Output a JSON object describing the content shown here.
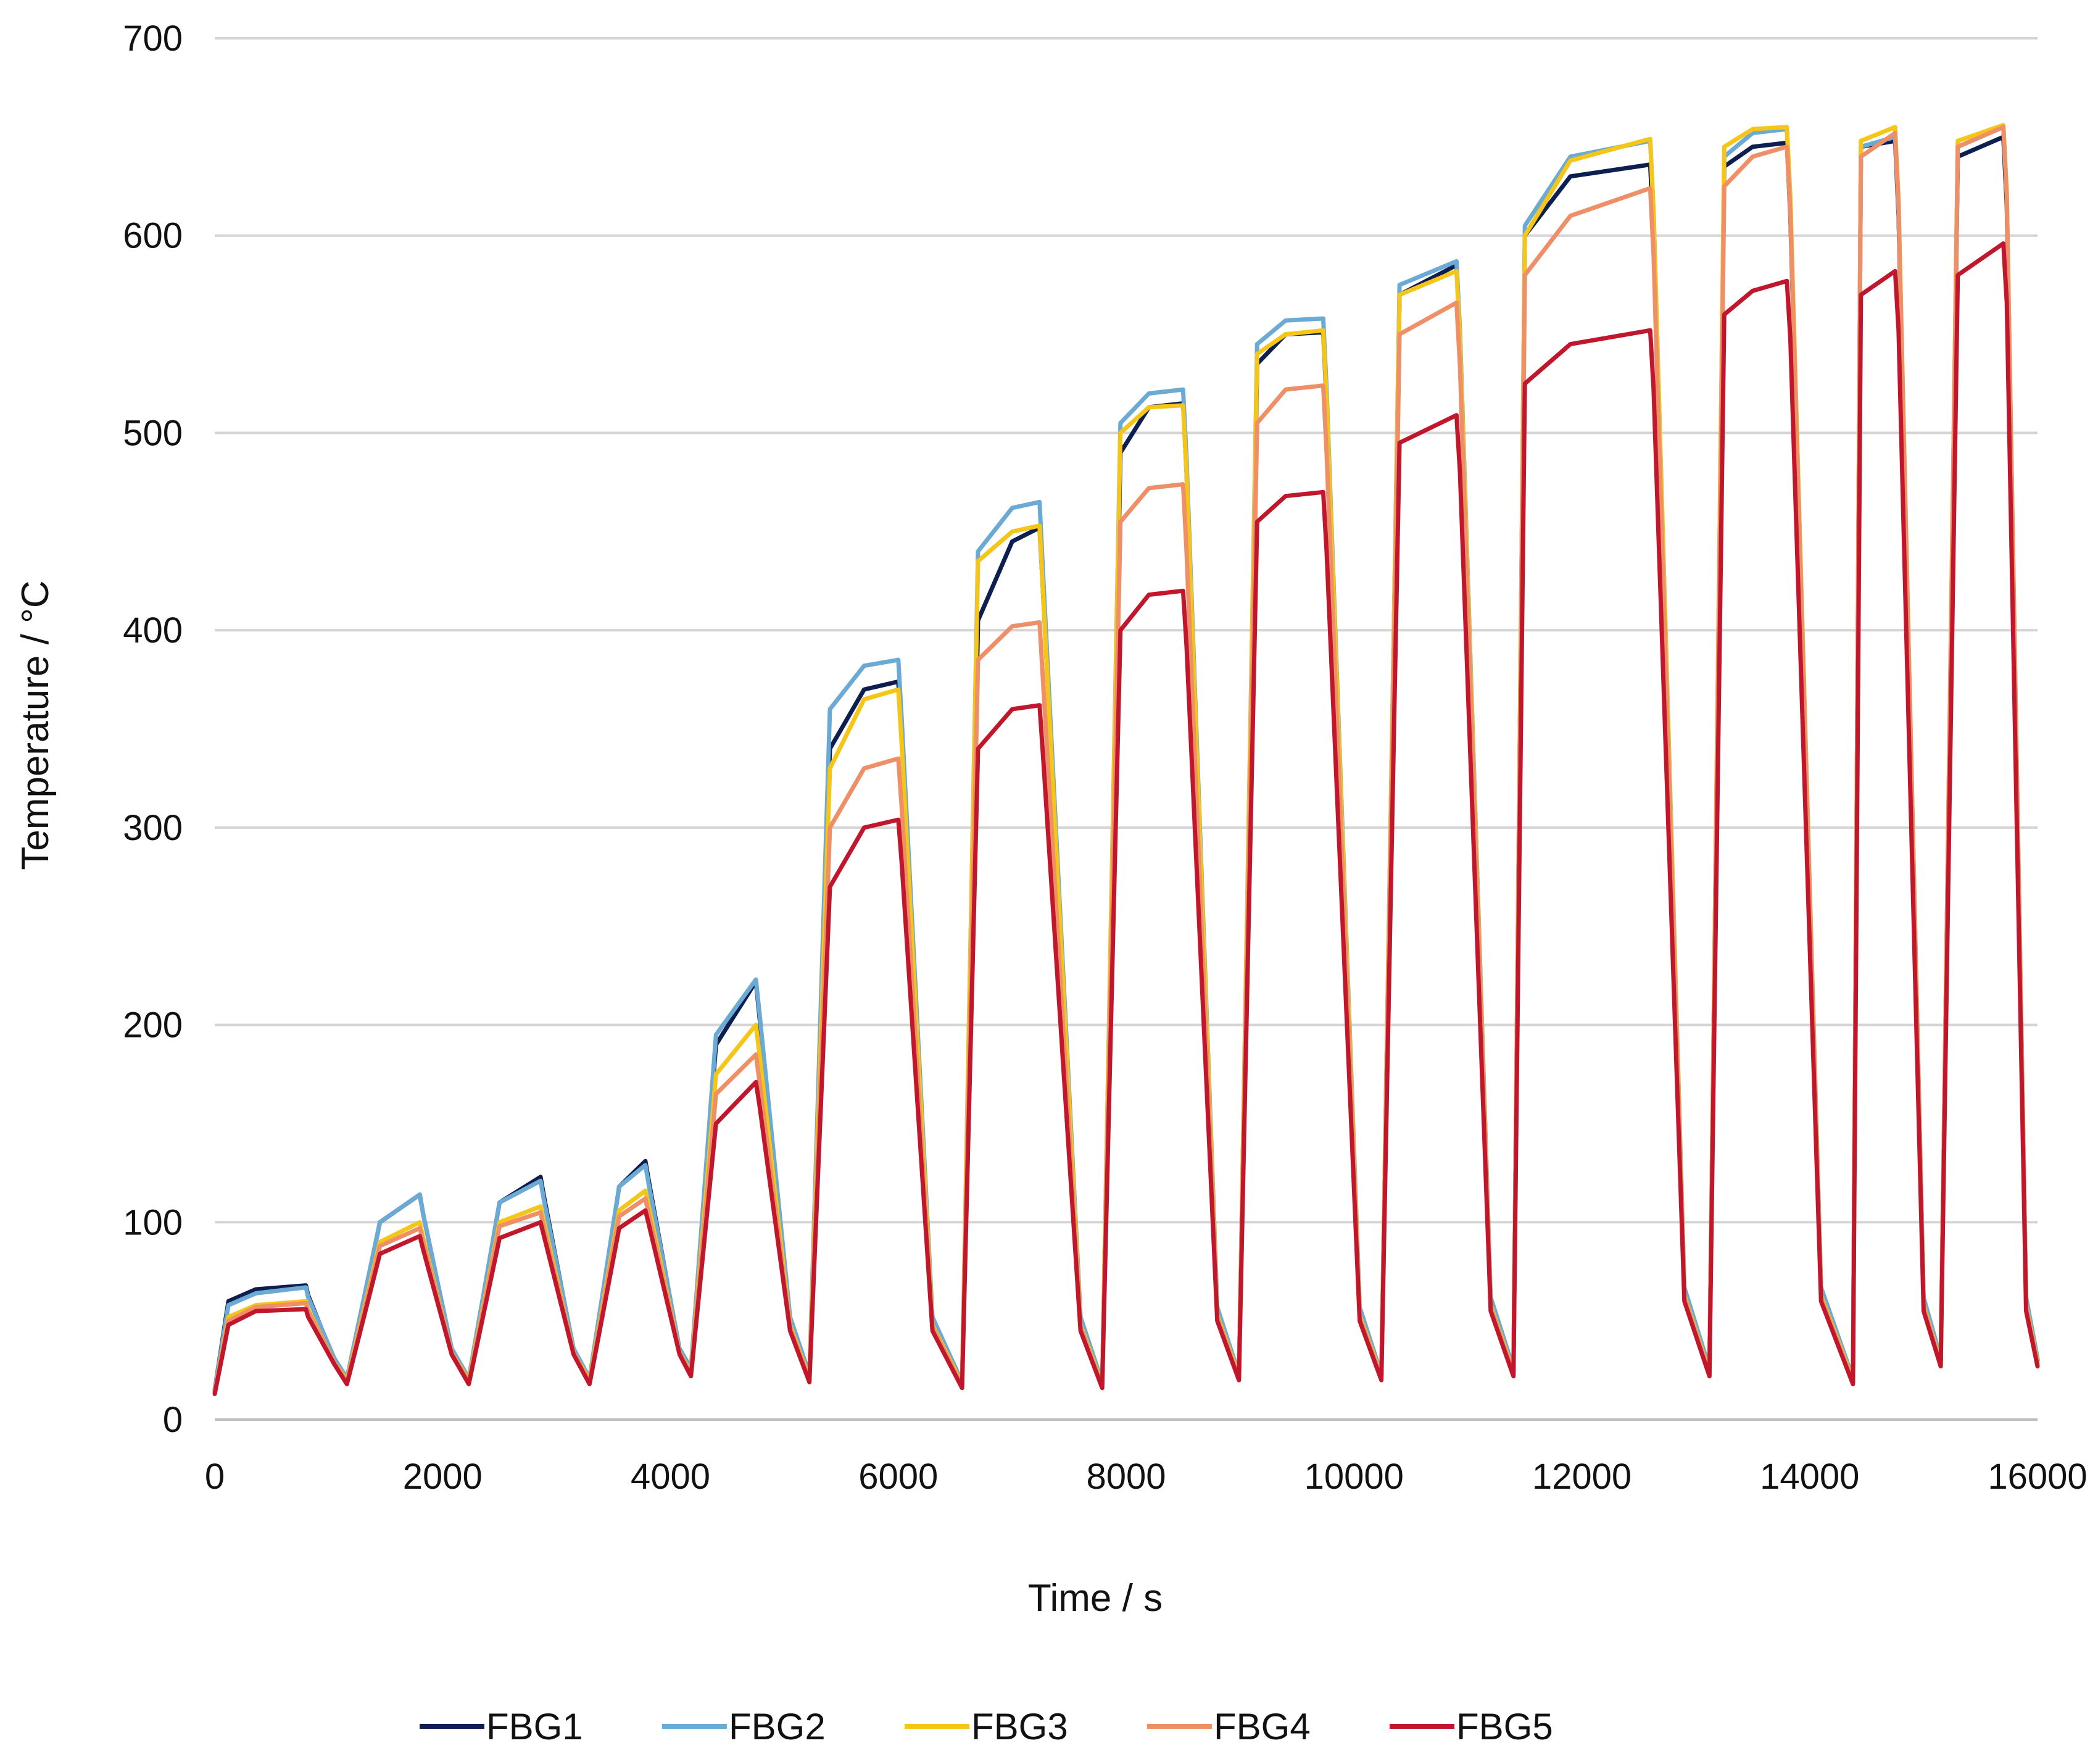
{
  "chart_data": {
    "type": "line",
    "title": "",
    "xlabel": "Time / s",
    "ylabel": "Temperature  / °C",
    "xlim": [
      0,
      16000
    ],
    "ylim": [
      0,
      700
    ],
    "x_ticks": [
      "0",
      "2000",
      "4000",
      "6000",
      "8000",
      "10000",
      "12000",
      "14000",
      "16000"
    ],
    "y_ticks": [
      "0",
      "100",
      "200",
      "300",
      "400",
      "500",
      "600",
      "700"
    ],
    "grid": "horizontal",
    "legend_position": "bottom",
    "series": [
      {
        "name": "FBG1",
        "color": "#0d1f4f",
        "x": [
          0,
          120,
          360,
          800,
          820,
          1050,
          1160,
          1450,
          1800,
          1830,
          2080,
          2230,
          2500,
          2860,
          2890,
          3150,
          3290,
          3550,
          3780,
          3810,
          4080,
          4180,
          4400,
          4750,
          4780,
          5050,
          5220,
          5400,
          5700,
          6000,
          6030,
          6300,
          6560,
          6700,
          7000,
          7240,
          7270,
          7600,
          7790,
          7950,
          8200,
          8500,
          8530,
          8800,
          8990,
          9150,
          9400,
          9730,
          9760,
          10050,
          10240,
          10400,
          10900,
          10930,
          11200,
          11400,
          11500,
          11900,
          12600,
          12630,
          12900,
          13120,
          13250,
          13500,
          13800,
          13830,
          14100,
          14380,
          14450,
          14750,
          14780,
          15000,
          15150,
          15300,
          15700,
          15730,
          15900,
          16000
        ],
        "y": [
          15,
          60,
          66,
          68,
          63,
          30,
          20,
          100,
          114,
          104,
          35,
          20,
          110,
          123,
          113,
          35,
          20,
          118,
          131,
          121,
          35,
          25,
          190,
          222,
          205,
          50,
          22,
          340,
          370,
          374,
          345,
          50,
          18,
          405,
          445,
          452,
          420,
          50,
          18,
          490,
          513,
          515,
          480,
          55,
          22,
          535,
          550,
          551,
          515,
          55,
          22,
          570,
          585,
          550,
          60,
          25,
          600,
          630,
          636,
          600,
          65,
          25,
          635,
          645,
          647,
          610,
          65,
          20,
          645,
          648,
          610,
          60,
          30,
          640,
          650,
          615,
          60,
          30
        ]
      },
      {
        "name": "FBG2",
        "color": "#6aaad4",
        "x": [
          0,
          120,
          360,
          800,
          820,
          1050,
          1160,
          1450,
          1800,
          1830,
          2080,
          2230,
          2500,
          2860,
          2890,
          3150,
          3290,
          3550,
          3780,
          3810,
          4080,
          4180,
          4400,
          4750,
          4780,
          5050,
          5220,
          5400,
          5700,
          6000,
          6030,
          6300,
          6560,
          6700,
          7000,
          7240,
          7270,
          7600,
          7790,
          7950,
          8200,
          8500,
          8530,
          8800,
          8990,
          9150,
          9400,
          9730,
          9760,
          10050,
          10240,
          10400,
          10900,
          10930,
          11200,
          11400,
          11500,
          11900,
          12600,
          12630,
          12900,
          13120,
          13250,
          13500,
          13800,
          13830,
          14100,
          14380,
          14450,
          14750,
          14780,
          15000,
          15150,
          15300,
          15700,
          15730,
          15900,
          16000
        ],
        "y": [
          15,
          58,
          64,
          67,
          62,
          31,
          21,
          100,
          114,
          104,
          36,
          21,
          110,
          121,
          111,
          36,
          21,
          118,
          129,
          119,
          36,
          26,
          195,
          223,
          207,
          52,
          23,
          360,
          382,
          385,
          355,
          52,
          19,
          440,
          462,
          465,
          430,
          52,
          19,
          505,
          520,
          522,
          487,
          57,
          23,
          545,
          557,
          558,
          522,
          57,
          23,
          575,
          587,
          552,
          62,
          26,
          605,
          640,
          648,
          612,
          67,
          26,
          640,
          652,
          654,
          618,
          67,
          21,
          645,
          650,
          613,
          62,
          31,
          645,
          655,
          620,
          62,
          31
        ]
      },
      {
        "name": "FBG3",
        "color": "#f5c518",
        "x": [
          0,
          120,
          360,
          800,
          820,
          1050,
          1160,
          1450,
          1800,
          1830,
          2080,
          2230,
          2500,
          2860,
          2890,
          3150,
          3290,
          3550,
          3780,
          3810,
          4080,
          4180,
          4400,
          4750,
          4780,
          5050,
          5220,
          5400,
          5700,
          6000,
          6030,
          6300,
          6560,
          6700,
          7000,
          7240,
          7270,
          7600,
          7790,
          7950,
          8200,
          8500,
          8530,
          8800,
          8990,
          9150,
          9400,
          9730,
          9760,
          10050,
          10240,
          10400,
          10900,
          10930,
          11200,
          11400,
          11500,
          11900,
          12600,
          12630,
          12900,
          13120,
          13250,
          13500,
          13800,
          13830,
          14100,
          14380,
          14450,
          14750,
          14780,
          15000,
          15150,
          15300,
          15700,
          15730,
          15900,
          16000
        ],
        "y": [
          14,
          52,
          58,
          60,
          56,
          29,
          20,
          90,
          100,
          92,
          34,
          20,
          100,
          108,
          100,
          34,
          20,
          106,
          116,
          108,
          34,
          24,
          175,
          200,
          186,
          48,
          21,
          330,
          365,
          370,
          342,
          48,
          18,
          435,
          450,
          453,
          420,
          48,
          18,
          500,
          513,
          514,
          480,
          53,
          22,
          540,
          550,
          552,
          517,
          53,
          22,
          570,
          582,
          548,
          58,
          24,
          600,
          638,
          649,
          612,
          63,
          24,
          645,
          654,
          655,
          620,
          63,
          20,
          648,
          655,
          618,
          58,
          29,
          648,
          656,
          622,
          58,
          29
        ]
      },
      {
        "name": "FBG4",
        "color": "#ee8f68",
        "x": [
          0,
          120,
          360,
          800,
          820,
          1050,
          1160,
          1450,
          1800,
          1830,
          2080,
          2230,
          2500,
          2860,
          2890,
          3150,
          3290,
          3550,
          3780,
          3810,
          4080,
          4180,
          4400,
          4750,
          4780,
          5050,
          5220,
          5400,
          5700,
          6000,
          6030,
          6300,
          6560,
          6700,
          7000,
          7240,
          7270,
          7600,
          7790,
          7950,
          8200,
          8500,
          8530,
          8800,
          8990,
          9150,
          9400,
          9730,
          9760,
          10050,
          10240,
          10400,
          10900,
          10930,
          11200,
          11400,
          11500,
          11900,
          12600,
          12630,
          12900,
          13120,
          13250,
          13500,
          13800,
          13830,
          14100,
          14380,
          14450,
          14750,
          14780,
          15000,
          15150,
          15300,
          15700,
          15730,
          15900,
          16000
        ],
        "y": [
          14,
          50,
          57,
          59,
          55,
          29,
          19,
          88,
          97,
          90,
          34,
          19,
          98,
          105,
          97,
          34,
          19,
          103,
          112,
          104,
          34,
          23,
          165,
          185,
          172,
          47,
          20,
          300,
          330,
          335,
          310,
          47,
          17,
          385,
          402,
          404,
          375,
          47,
          17,
          455,
          472,
          474,
          440,
          52,
          21,
          505,
          522,
          524,
          490,
          52,
          21,
          550,
          566,
          534,
          57,
          23,
          580,
          610,
          624,
          590,
          62,
          23,
          625,
          640,
          645,
          612,
          62,
          19,
          640,
          652,
          615,
          57,
          28,
          645,
          655,
          620,
          57,
          28
        ]
      },
      {
        "name": "FBG5",
        "color": "#c0172c",
        "x": [
          0,
          120,
          360,
          800,
          820,
          1050,
          1160,
          1450,
          1800,
          1830,
          2080,
          2230,
          2500,
          2860,
          2890,
          3150,
          3290,
          3550,
          3780,
          3810,
          4080,
          4180,
          4400,
          4750,
          4780,
          5050,
          5220,
          5400,
          5700,
          6000,
          6030,
          6300,
          6560,
          6700,
          7000,
          7240,
          7270,
          7600,
          7790,
          7950,
          8200,
          8500,
          8530,
          8800,
          8990,
          9150,
          9400,
          9730,
          9760,
          10050,
          10240,
          10400,
          10900,
          10930,
          11200,
          11400,
          11500,
          11900,
          12600,
          12630,
          12900,
          13120,
          13250,
          13500,
          13800,
          13830,
          14100,
          14380,
          14450,
          14750,
          14780,
          15000,
          15150,
          15300,
          15700,
          15730,
          15900,
          16000
        ],
        "y": [
          13,
          48,
          55,
          56,
          52,
          28,
          18,
          84,
          93,
          86,
          33,
          18,
          92,
          100,
          93,
          33,
          18,
          97,
          106,
          99,
          33,
          22,
          150,
          171,
          160,
          45,
          19,
          270,
          300,
          304,
          282,
          45,
          16,
          340,
          360,
          362,
          337,
          45,
          16,
          400,
          418,
          420,
          392,
          50,
          20,
          455,
          468,
          470,
          440,
          50,
          20,
          495,
          509,
          480,
          55,
          22,
          525,
          545,
          552,
          522,
          60,
          22,
          560,
          572,
          577,
          548,
          60,
          18,
          570,
          582,
          552,
          55,
          27,
          580,
          596,
          566,
          55,
          27
        ]
      }
    ]
  }
}
